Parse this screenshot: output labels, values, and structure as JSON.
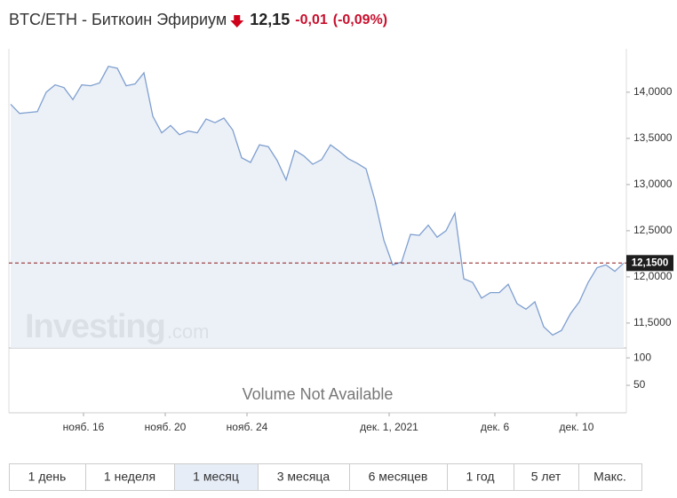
{
  "header": {
    "title": "BTC/ETH - Биткоин Эфириум",
    "price": "12,15",
    "change": "-0,01",
    "change_pct": "(-0,09%)"
  },
  "chart_data": {
    "type": "line",
    "x": [
      0,
      1,
      2,
      3,
      4,
      5,
      6,
      7,
      8,
      9,
      10,
      11,
      12,
      13,
      14,
      15,
      16,
      17,
      18,
      19,
      20,
      21,
      22,
      23,
      24,
      25,
      26,
      27,
      28,
      29,
      30,
      31,
      32,
      33,
      34,
      35,
      36,
      37,
      38,
      39,
      40,
      41,
      42,
      43,
      44,
      45,
      46,
      47,
      48,
      49,
      50,
      51,
      52,
      53,
      54,
      55,
      56,
      57,
      58,
      59,
      60,
      61,
      62,
      63,
      64,
      65,
      66,
      67,
      68,
      69
    ],
    "series": [
      {
        "color": "#7f9fcf",
        "values": [
          13.87,
          13.77,
          13.78,
          13.79,
          14.0,
          14.08,
          14.05,
          13.92,
          14.08,
          14.07,
          14.1,
          14.28,
          14.26,
          14.07,
          14.09,
          14.21,
          13.74,
          13.56,
          13.64,
          13.54,
          13.58,
          13.56,
          13.71,
          13.67,
          13.72,
          13.59,
          13.29,
          13.24,
          13.43,
          13.41,
          13.26,
          13.05,
          13.37,
          13.31,
          13.22,
          13.27,
          13.43,
          13.36,
          13.28,
          13.23,
          13.17,
          12.83,
          12.4,
          12.13,
          12.16,
          12.46,
          12.45,
          12.56,
          12.43,
          12.5,
          12.69,
          11.98,
          11.94,
          11.77,
          11.83,
          11.83,
          11.92,
          11.71,
          11.65,
          11.73,
          11.46,
          11.37,
          11.42,
          11.6,
          11.73,
          11.94,
          12.1,
          12.13,
          12.06,
          12.15
        ]
      }
    ],
    "xlim": [
      0,
      69
    ],
    "xticks": [
      {
        "value": 8.2,
        "label": "нояб. 16"
      },
      {
        "value": 17.4,
        "label": "нояб. 20"
      },
      {
        "value": 26.6,
        "label": "нояб. 24"
      },
      {
        "value": 42.6,
        "label": "дек. 1, 2021"
      },
      {
        "value": 54.5,
        "label": "дек. 6"
      },
      {
        "value": 63.7,
        "label": "дек. 10"
      }
    ],
    "ylim": [
      11.23,
      14.47
    ],
    "yticks": [
      {
        "value": 11.5,
        "label": "11,5000"
      },
      {
        "value": 12,
        "label": "12,0000"
      },
      {
        "value": 12.5,
        "label": "12,5000"
      },
      {
        "value": 13,
        "label": "13,0000"
      },
      {
        "value": 13.5,
        "label": "13,5000"
      },
      {
        "value": 14,
        "label": "14,0000"
      }
    ],
    "last": {
      "value": 12.15,
      "label": "12,1500",
      "color": "#8b1a1a"
    },
    "volume": {
      "ylim": [
        0,
        118
      ],
      "yticks": [
        50,
        100
      ],
      "note": "Volume Not Available"
    },
    "watermark": "Investing",
    "watermark_suffix": ".com"
  },
  "periods": {
    "labels": [
      "1 день",
      "1 неделя",
      "1 месяц",
      "3 месяца",
      "6 месяцев",
      "1 год",
      "5 лет",
      "Макс."
    ],
    "active": 2
  }
}
